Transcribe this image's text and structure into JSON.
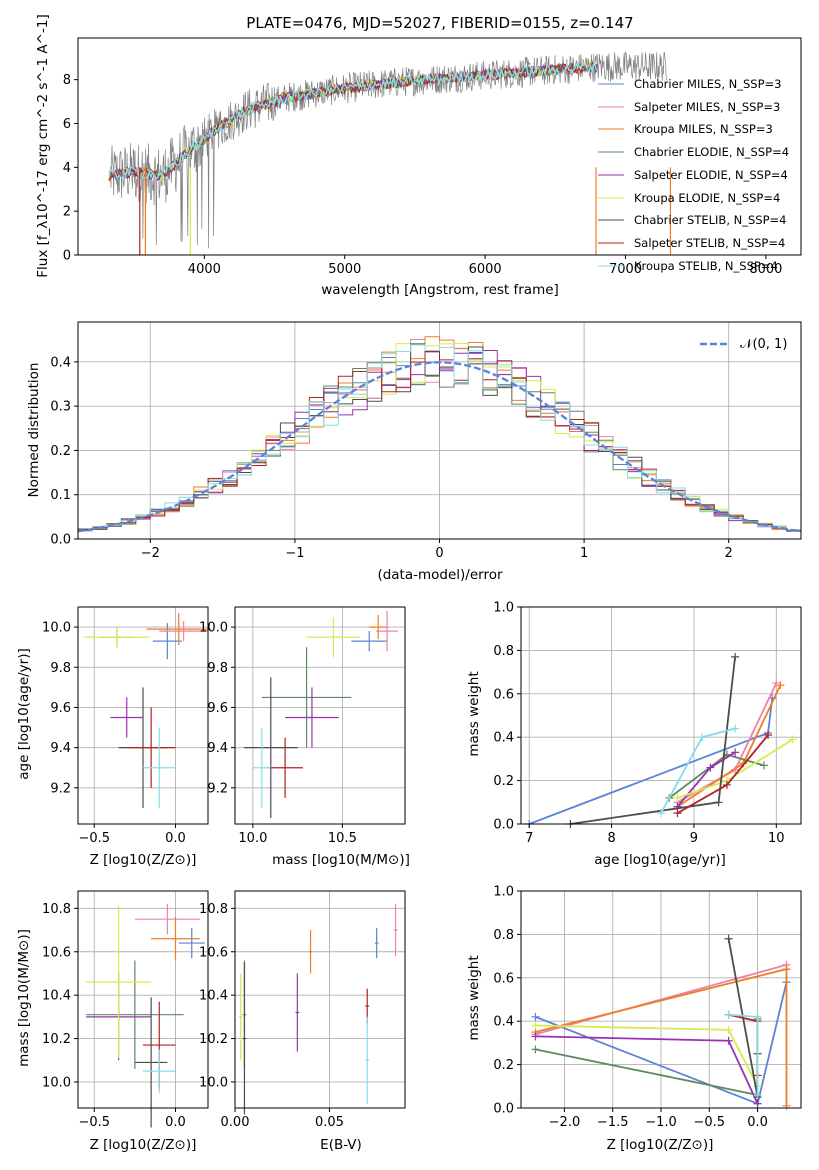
{
  "chart_data": [
    {
      "type": "line",
      "title": "PLATE=0476, MJD=52027, FIBERID=0155, z=0.147",
      "xlabel": "wavelength [Angstrom, rest frame]",
      "ylabel": "Flux [f_λ10^-17 erg cm^-2 s^-1 A^-1]",
      "xlim": [
        3100,
        8250
      ],
      "ylim": [
        0,
        9.9
      ],
      "x_ticks": [
        "4000",
        "5000",
        "6000",
        "7000",
        "8000"
      ],
      "y_ticks": [
        "0",
        "2",
        "4",
        "6",
        "8"
      ],
      "grid": false,
      "legend_placement": "upper right",
      "series": [
        {
          "name": "Chabrier MILES, N_SSP=3",
          "color": "#5b84d6",
          "x": [
            3320,
            3500,
            3700,
            3900,
            4100,
            4300,
            4600,
            5000,
            5400,
            5800,
            6200,
            6600,
            6800
          ],
          "values": [
            3.6,
            3.8,
            3.6,
            4.8,
            5.8,
            6.6,
            7.2,
            7.6,
            7.9,
            8.1,
            8.3,
            8.5,
            8.6
          ]
        },
        {
          "name": "Salpeter MILES, N_SSP=3",
          "color": "#ee82a8",
          "x": [
            3320,
            3500,
            3700,
            3900,
            4100,
            4300,
            4600,
            5000,
            5400,
            5800,
            6200,
            6600,
            6800
          ],
          "values": [
            3.6,
            3.8,
            3.6,
            4.8,
            5.8,
            6.6,
            7.2,
            7.6,
            7.9,
            8.1,
            8.3,
            8.5,
            8.6
          ]
        },
        {
          "name": "Kroupa MILES, N_SSP=3",
          "color": "#f07c27",
          "x": [
            3320,
            3500,
            3700,
            3900,
            4100,
            4300,
            4600,
            5000,
            5400,
            5800,
            6200,
            6600,
            6800
          ],
          "values": [
            3.6,
            3.8,
            3.6,
            4.8,
            5.8,
            6.6,
            7.2,
            7.6,
            7.9,
            8.1,
            8.3,
            8.5,
            8.6
          ]
        },
        {
          "name": "Chabrier ELODIE, N_SSP=4",
          "color": "#5e8b5e",
          "x": [
            3320,
            3500,
            3700,
            3900,
            4100,
            4300,
            4600,
            5000,
            5400,
            5800,
            6200,
            6600,
            6800
          ],
          "values": [
            3.6,
            3.8,
            3.6,
            4.8,
            5.8,
            6.6,
            7.2,
            7.6,
            7.9,
            8.1,
            8.3,
            8.5,
            8.6
          ]
        },
        {
          "name": "Salpeter ELODIE, N_SSP=4",
          "color": "#9b30b0",
          "x": [
            3320,
            3500,
            3700,
            3900,
            4100,
            4300,
            4600,
            5000,
            5400,
            5800,
            6200,
            6600,
            6800
          ],
          "values": [
            3.6,
            3.8,
            3.6,
            4.8,
            5.8,
            6.6,
            7.2,
            7.6,
            7.9,
            8.1,
            8.3,
            8.5,
            8.6
          ]
        },
        {
          "name": "Kroupa ELODIE, N_SSP=4",
          "color": "#d7ea4f",
          "x": [
            3320,
            3500,
            3700,
            3900,
            4100,
            4300,
            4600,
            5000,
            5400,
            5800,
            6200,
            6600,
            6800
          ],
          "values": [
            3.6,
            3.8,
            3.6,
            4.8,
            5.8,
            6.6,
            7.2,
            7.6,
            7.9,
            8.1,
            8.3,
            8.5,
            8.6
          ]
        },
        {
          "name": "Chabrier STELIB, N_SSP=4",
          "color": "#4d4d4d",
          "x": [
            3320,
            3500,
            3700,
            3900,
            4100,
            4300,
            4600,
            5000,
            5400,
            5800,
            6200,
            6600,
            6800
          ],
          "values": [
            3.6,
            3.8,
            3.6,
            4.8,
            5.8,
            6.6,
            7.2,
            7.6,
            7.9,
            8.1,
            8.3,
            8.5,
            8.6
          ]
        },
        {
          "name": "Salpeter STELIB, N_SSP=4",
          "color": "#b22222",
          "x": [
            3320,
            3500,
            3700,
            3900,
            4100,
            4300,
            4600,
            5000,
            5400,
            5800,
            6200,
            6600,
            6800
          ],
          "values": [
            3.6,
            3.8,
            3.6,
            4.8,
            5.8,
            6.6,
            7.2,
            7.6,
            7.9,
            8.1,
            8.3,
            8.5,
            8.6
          ]
        },
        {
          "name": "Kroupa STELIB, N_SSP=4",
          "color": "#87dbe6",
          "x": [
            3320,
            3500,
            3700,
            3900,
            4100,
            4300,
            4600,
            5000,
            5400,
            5800,
            6200,
            6600,
            6800
          ],
          "values": [
            3.6,
            3.8,
            3.6,
            4.8,
            5.8,
            6.6,
            7.2,
            7.6,
            7.9,
            8.1,
            8.3,
            8.5,
            8.6
          ]
        }
      ],
      "data_color": "#808080",
      "data_range": [
        3330,
        7300
      ]
    },
    {
      "type": "bar",
      "xlabel": "(data-model)/error",
      "ylabel": "Normed distribution",
      "xlim": [
        -2.5,
        2.5
      ],
      "ylim": [
        0,
        0.49
      ],
      "x_ticks": [
        "−2",
        "−1",
        "0",
        "1",
        "2"
      ],
      "y_ticks": [
        "0.0",
        "0.1",
        "0.2",
        "0.3",
        "0.4"
      ],
      "grid": true,
      "legend_placement": "upper right",
      "reference_curve": {
        "name": "𝒩(0, 1)",
        "color": "#5b84d6",
        "style": "dashed"
      },
      "bin_width": 0.1
    },
    {
      "type": "scatter",
      "xlabel": "Z [log10(Z/Z⊙)]",
      "ylabel": "age  [log10(age/yr)]",
      "xlim": [
        -0.6,
        0.2
      ],
      "ylim": [
        9.02,
        10.1
      ],
      "x_ticks": [
        "−0.5",
        "0.0"
      ],
      "y_ticks": [
        "9.2",
        "9.4",
        "9.6",
        "9.8",
        "10.0"
      ],
      "grid": true
    },
    {
      "type": "scatter",
      "xlabel": "mass [log10(M/M⊙)]",
      "ylabel": "",
      "xlim": [
        9.9,
        10.85
      ],
      "ylim": [
        9.02,
        10.1
      ],
      "x_ticks": [
        "10.0",
        "10.5"
      ],
      "y_ticks": [
        "9.2",
        "9.4",
        "9.6",
        "9.8",
        "10.0"
      ],
      "grid": true
    },
    {
      "type": "line",
      "xlabel": "age  [log10(age/yr)]",
      "ylabel": "mass weight",
      "xlim": [
        6.9,
        10.3
      ],
      "ylim": [
        0,
        1.0
      ],
      "x_ticks": [
        "7",
        "8",
        "9",
        "10"
      ],
      "y_ticks": [
        "0.0",
        "0.2",
        "0.4",
        "0.6",
        "0.8",
        "1.0"
      ],
      "grid": true
    },
    {
      "type": "scatter",
      "xlabel": "Z [log10(Z/Z⊙)]",
      "ylabel": "mass [log10(M/M⊙)]",
      "xlim": [
        -0.6,
        0.2
      ],
      "ylim": [
        9.88,
        10.88
      ],
      "x_ticks": [
        "−0.5",
        "0.0"
      ],
      "y_ticks": [
        "10.0",
        "10.2",
        "10.4",
        "10.6",
        "10.8"
      ],
      "grid": true
    },
    {
      "type": "scatter",
      "xlabel": "E(B-V)",
      "ylabel": "",
      "xlim": [
        0,
        0.09
      ],
      "ylim": [
        9.88,
        10.88
      ],
      "x_ticks": [
        "0.00",
        "0.05"
      ],
      "y_ticks": [
        "10.0",
        "10.2",
        "10.4",
        "10.6",
        "10.8"
      ],
      "grid": true
    },
    {
      "type": "line",
      "xlabel": "Z [log10(Z/Z⊙)]",
      "ylabel": "mass weight",
      "xlim": [
        -2.45,
        0.45
      ],
      "ylim": [
        0,
        1.0
      ],
      "x_ticks": [
        "−2.0",
        "−1.5",
        "−1.0",
        "−0.5",
        "0.0"
      ],
      "y_ticks": [
        "0.0",
        "0.2",
        "0.4",
        "0.6",
        "0.8",
        "1.0"
      ],
      "grid": true
    }
  ]
}
